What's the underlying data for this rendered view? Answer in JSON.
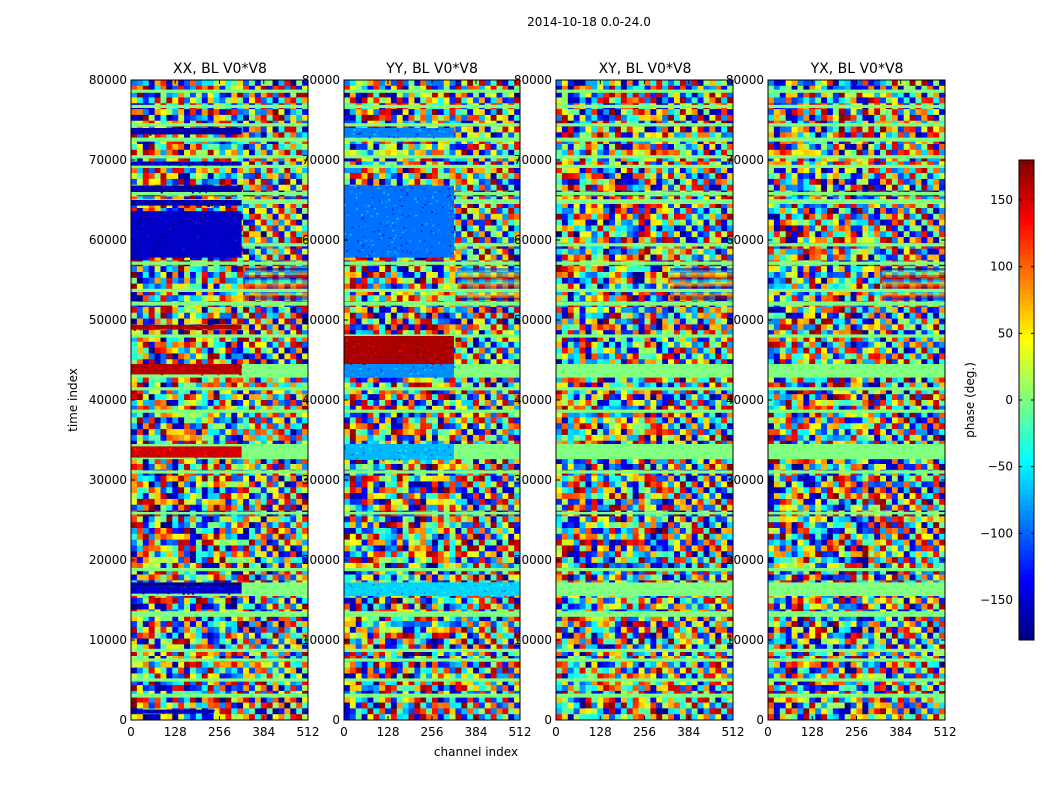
{
  "figure_title": "2014-10-18 0.0-24.0",
  "chart_data": [
    {
      "type": "heatmap",
      "title": "XX, BL V0*V8",
      "xlabel": "",
      "ylabel": "time index",
      "xlim": [
        0,
        512
      ],
      "ylim": [
        0,
        80000
      ],
      "xticks": [
        "0",
        "128",
        "256",
        "384",
        "512"
      ],
      "yticks": [
        "0",
        "10000",
        "20000",
        "30000",
        "40000",
        "50000",
        "60000",
        "70000",
        "80000"
      ],
      "split_channel": 320,
      "value_range": [
        -180,
        180
      ],
      "colorscale": "jet",
      "coherent_bands": [
        {
          "t0": 800,
          "t1": 1300,
          "phase": -160,
          "c0": 0,
          "c1": 240
        },
        {
          "t0": 15800,
          "t1": 16700,
          "phase": -150,
          "c0": 0,
          "c1": 320
        },
        {
          "t0": 16700,
          "t1": 17200,
          "phase": -170,
          "c0": 0,
          "c1": 320
        },
        {
          "t0": 32800,
          "t1": 34200,
          "phase": 150,
          "c0": 0,
          "c1": 320
        },
        {
          "t0": 43200,
          "t1": 44500,
          "phase": 160,
          "c0": 0,
          "c1": 320
        },
        {
          "t0": 48800,
          "t1": 49400,
          "phase": 165,
          "c0": 0,
          "c1": 320
        },
        {
          "t0": 57800,
          "t1": 63600,
          "phase": -155,
          "c0": 0,
          "c1": 320
        },
        {
          "t0": 64300,
          "t1": 65000,
          "phase": -165,
          "c0": 0,
          "c1": 320
        },
        {
          "t0": 66000,
          "t1": 66800,
          "phase": -165,
          "c0": 0,
          "c1": 320
        },
        {
          "t0": 69300,
          "t1": 69800,
          "phase": -160,
          "c0": 0,
          "c1": 320
        },
        {
          "t0": 73200,
          "t1": 74000,
          "phase": -165,
          "c0": 0,
          "c1": 320
        }
      ]
    },
    {
      "type": "heatmap",
      "title": "YY, BL V0*V8",
      "xlabel": "channel index",
      "ylabel": "",
      "xlim": [
        0,
        512
      ],
      "ylim": [
        0,
        80000
      ],
      "xticks": [
        "0",
        "128",
        "256",
        "384",
        "512"
      ],
      "yticks": [
        "0",
        "10000",
        "20000",
        "30000",
        "40000",
        "50000",
        "60000",
        "70000",
        "80000"
      ],
      "split_channel": 320,
      "value_range": [
        -180,
        180
      ],
      "colorscale": "jet",
      "coherent_bands": [
        {
          "t0": 15500,
          "t1": 17200,
          "phase": -60,
          "c0": 0,
          "c1": 512
        },
        {
          "t0": 32500,
          "t1": 34500,
          "phase": -70,
          "c0": 0,
          "c1": 320
        },
        {
          "t0": 42800,
          "t1": 44500,
          "phase": -85,
          "c0": 0,
          "c1": 320
        },
        {
          "t0": 44500,
          "t1": 48000,
          "phase": 165,
          "c0": 0,
          "c1": 320
        },
        {
          "t0": 57800,
          "t1": 66800,
          "phase": -95,
          "c0": 0,
          "c1": 320
        },
        {
          "t0": 72800,
          "t1": 74000,
          "phase": -90,
          "c0": 0,
          "c1": 320
        }
      ]
    },
    {
      "type": "heatmap",
      "title": "XY, BL V0*V8",
      "xlabel": "",
      "ylabel": "",
      "xlim": [
        0,
        512
      ],
      "ylim": [
        0,
        80000
      ],
      "xticks": [
        "0",
        "128",
        "256",
        "384",
        "512"
      ],
      "yticks": [
        "0",
        "10000",
        "20000",
        "30000",
        "40000",
        "50000",
        "60000",
        "70000",
        "80000"
      ],
      "split_channel": 320,
      "value_range": [
        -180,
        180
      ],
      "colorscale": "jet",
      "coherent_bands": []
    },
    {
      "type": "heatmap",
      "title": "YX, BL V0*V8",
      "xlabel": "",
      "ylabel": "",
      "xlim": [
        0,
        512
      ],
      "ylim": [
        0,
        80000
      ],
      "xticks": [
        "0",
        "128",
        "256",
        "384",
        "512"
      ],
      "yticks": [
        "0",
        "10000",
        "20000",
        "30000",
        "40000",
        "50000",
        "60000",
        "70000",
        "80000"
      ],
      "split_channel": 320,
      "value_range": [
        -180,
        180
      ],
      "colorscale": "jet",
      "coherent_bands": []
    }
  ],
  "shared_flagged_rows": [
    [
      2800,
      3300
    ],
    [
      4800,
      5200
    ],
    [
      7300,
      7700
    ],
    [
      8500,
      8900
    ],
    [
      12900,
      13600
    ],
    [
      15500,
      17200
    ],
    [
      18600,
      19000
    ],
    [
      25700,
      26000
    ],
    [
      30800,
      31200
    ],
    [
      32600,
      34500
    ],
    [
      38400,
      38800
    ],
    [
      41200,
      41600
    ],
    [
      42800,
      44500
    ],
    [
      47800,
      48200
    ],
    [
      51800,
      52300
    ],
    [
      53500,
      53900
    ],
    [
      56900,
      57300
    ],
    [
      59200,
      59600
    ],
    [
      64500,
      65100
    ],
    [
      65600,
      66000
    ],
    [
      69000,
      69400
    ],
    [
      70200,
      70600
    ],
    [
      72300,
      72800
    ],
    [
      74200,
      74600
    ],
    [
      76500,
      76900
    ],
    [
      78400,
      78800
    ]
  ],
  "fringe_patches": [
    {
      "t0": 52500,
      "t1": 56500,
      "c0": 330,
      "c1": 512
    }
  ],
  "colorbar": {
    "label": "phase (deg.)",
    "min": -180,
    "max": 180,
    "ticks": [
      "150",
      "100",
      "50",
      "0",
      "−50",
      "−100",
      "−150"
    ],
    "tick_values": [
      150,
      100,
      50,
      0,
      -50,
      -100,
      -150
    ]
  }
}
